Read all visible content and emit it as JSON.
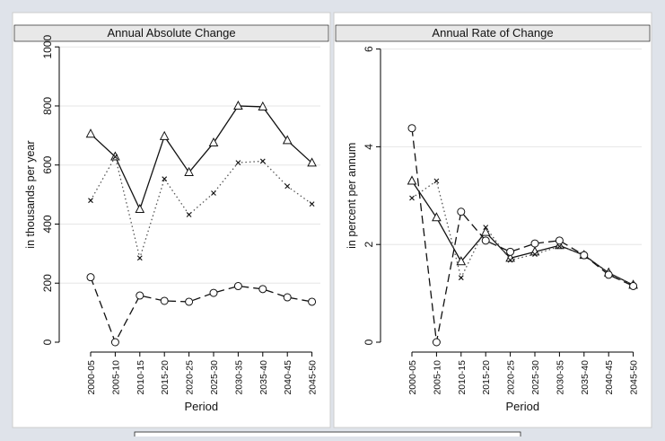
{
  "chart_data": [
    {
      "type": "line",
      "title": "Annual Absolute Change",
      "xlabel": "Period",
      "ylabel": "in thousands per year",
      "categories": [
        "2000-05",
        "2005-10",
        "2010-15",
        "2015-20",
        "2020-25",
        "2025-30",
        "2030-35",
        "2035-40",
        "2040-45",
        "2045-50"
      ],
      "ylim": [
        0,
        1000
      ],
      "yticks": [
        0,
        200,
        400,
        600,
        800,
        1000
      ],
      "grid": true,
      "series": [
        {
          "marker": "triangle",
          "line": "solid",
          "values": [
            705,
            628,
            450,
            697,
            575,
            675,
            800,
            797,
            683,
            607
          ]
        },
        {
          "marker": "x",
          "line": "dotted",
          "values": [
            480,
            628,
            285,
            553,
            432,
            505,
            608,
            613,
            528,
            468
          ]
        },
        {
          "marker": "circle",
          "line": "dashed",
          "values": [
            220,
            0,
            158,
            140,
            137,
            167,
            190,
            180,
            152,
            137
          ]
        }
      ]
    },
    {
      "type": "line",
      "title": "Annual Rate of Change",
      "xlabel": "Period",
      "ylabel": "in percent per annum",
      "categories": [
        "2000-05",
        "2005-10",
        "2010-15",
        "2015-20",
        "2020-25",
        "2025-30",
        "2030-35",
        "2035-40",
        "2040-45",
        "2045-50"
      ],
      "ylim": [
        0,
        6
      ],
      "yticks": [
        0,
        2,
        4,
        6
      ],
      "grid": true,
      "series": [
        {
          "marker": "triangle",
          "line": "solid",
          "values": [
            3.3,
            2.55,
            1.65,
            2.25,
            1.72,
            1.85,
            1.98,
            1.78,
            1.42,
            1.17
          ]
        },
        {
          "marker": "x",
          "line": "dotted",
          "values": [
            2.95,
            3.3,
            1.32,
            2.35,
            1.68,
            1.8,
            1.96,
            1.8,
            1.4,
            1.17
          ]
        },
        {
          "marker": "circle",
          "line": "dashed",
          "values": [
            4.38,
            0.0,
            2.67,
            2.08,
            1.85,
            2.02,
            2.08,
            1.78,
            1.38,
            1.15
          ]
        }
      ]
    }
  ]
}
